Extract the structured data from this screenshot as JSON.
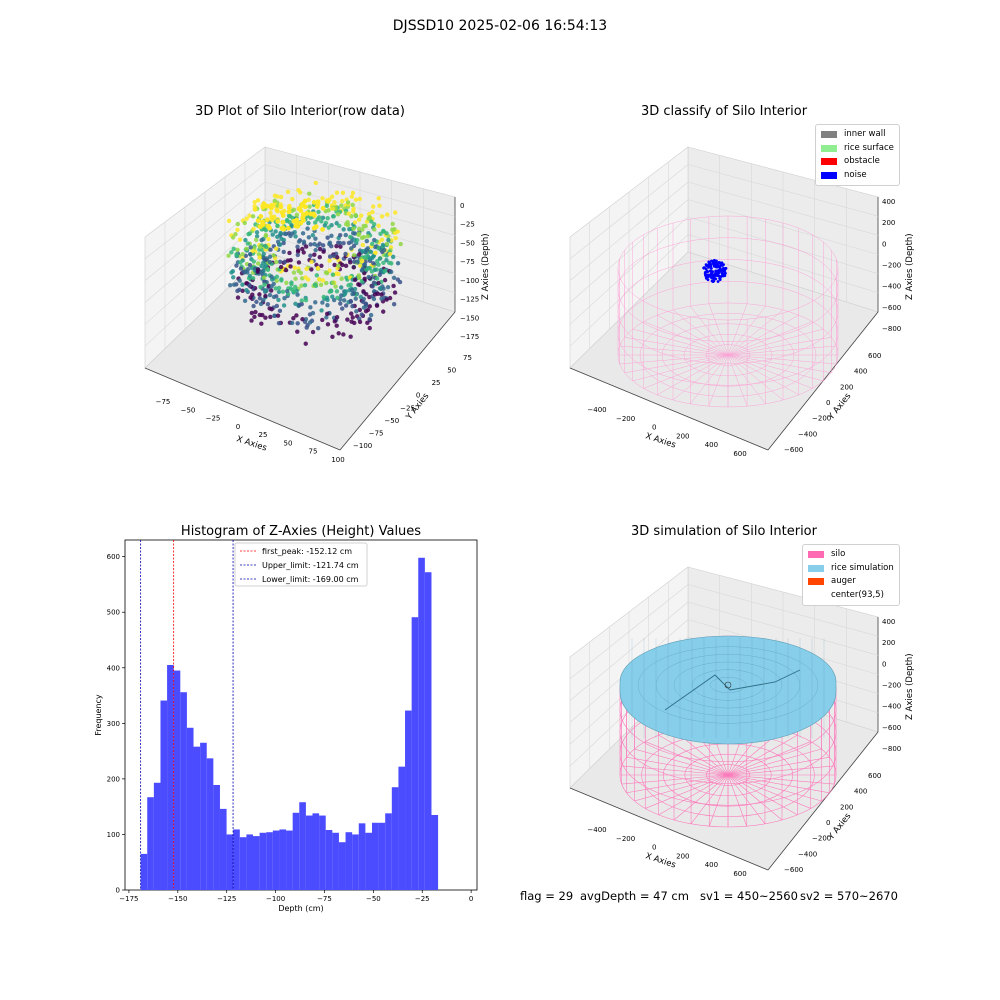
{
  "suptitle": "DJSSD10 2025-02-06 16:54:13",
  "panels": {
    "raw": {
      "title": "3D Plot of Silo Interior(row data)",
      "xlabel": "X Axies",
      "ylabel": "Y Axies",
      "zlabel": "Z Axies (Depth)",
      "xticks": [
        "−75",
        "−50",
        "−25",
        "0",
        "25",
        "50",
        "75",
        "100"
      ],
      "yticks": [
        "75",
        "50",
        "25",
        "0",
        "−25",
        "−50",
        "−75",
        "−100"
      ],
      "zticks": [
        "0",
        "−25",
        "−50",
        "−75",
        "−100",
        "−125",
        "−150",
        "−175"
      ]
    },
    "classify": {
      "title": "3D classify of Silo Interior",
      "xlabel": "X Axies",
      "ylabel": "Y Axies",
      "zlabel": "Z Axies (Depth)",
      "xticks": [
        "−400",
        "−200",
        "0",
        "200",
        "400",
        "600"
      ],
      "yticks": [
        "600",
        "400",
        "200",
        "0",
        "−200",
        "−400",
        "−600"
      ],
      "zticks": [
        "400",
        "200",
        "0",
        "−200",
        "−400",
        "−600",
        "−800"
      ],
      "legend": [
        {
          "label": "inner wall",
          "color": "#808080"
        },
        {
          "label": "rice surface",
          "color": "#90ee90"
        },
        {
          "label": "obstacle",
          "color": "#ff0000"
        },
        {
          "label": "noise",
          "color": "#0000ff"
        }
      ]
    },
    "simulation": {
      "title": "3D simulation of Silo Interior",
      "xlabel": "X Axies",
      "ylabel": "Y Axies",
      "zlabel": "Z Axies (Depth)",
      "xticks": [
        "−400",
        "−200",
        "0",
        "200",
        "400",
        "600"
      ],
      "yticks": [
        "600",
        "400",
        "200",
        "0",
        "−200",
        "−400",
        "−600"
      ],
      "zticks": [
        "400",
        "200",
        "0",
        "−200",
        "−400",
        "−600",
        "−800"
      ],
      "legend": [
        {
          "label": "silo",
          "color": "#ff69b4"
        },
        {
          "label": "rice simulation",
          "color": "#87ceeb"
        },
        {
          "label": "auger",
          "color": "#ff4500"
        },
        {
          "label": "center(93,5)",
          "color": "#ffffff"
        }
      ]
    }
  },
  "chart_data": {
    "type": "bar",
    "title": "Histogram of Z-Axies (Height) Values",
    "xlabel": "Depth (cm)",
    "ylabel": "Frequency",
    "xlim": [
      -177,
      3
    ],
    "ylim": [
      0,
      630
    ],
    "bin_start": -169.0,
    "bin_width": 3.38,
    "values": [
      65,
      167,
      193,
      341,
      405,
      395,
      356,
      292,
      258,
      265,
      237,
      189,
      146,
      100,
      109,
      95,
      100,
      97,
      103,
      104,
      107,
      109,
      107,
      139,
      158,
      134,
      138,
      134,
      108,
      103,
      86,
      104,
      100,
      120,
      103,
      121,
      121,
      138,
      185,
      222,
      323,
      491,
      598,
      572,
      135
    ],
    "xticks": [
      -175,
      -150,
      -125,
      -100,
      -75,
      -50,
      -25,
      0
    ],
    "yticks": [
      0,
      100,
      200,
      300,
      400,
      500,
      600
    ],
    "vlines": [
      {
        "label": "first_peak: -152.12 cm",
        "value": -152.12,
        "color": "#ff0000"
      },
      {
        "label": "Upper_limit: -121.74 cm",
        "value": -121.74,
        "color": "#0000aa"
      },
      {
        "label": "Lower_limit: -169.00 cm",
        "value": -169.0,
        "color": "#0000aa"
      }
    ],
    "bar_color": "#4b4bff"
  },
  "footer": {
    "flag": "flag = 29",
    "avg": "avgDepth = 47 cm",
    "sv1": "sv1 = 450~2560",
    "sv2": "sv2 = 570~2670"
  }
}
